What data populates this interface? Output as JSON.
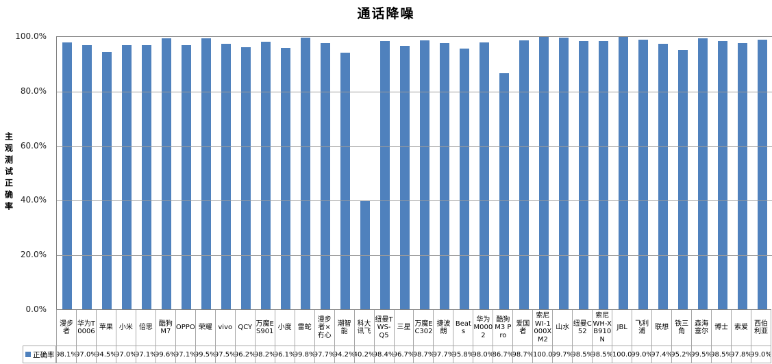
{
  "title": "通话降噪",
  "y_axis": {
    "label": "主观测试正确率",
    "ticks": [
      "100.0%",
      "80.0%",
      "60.0%",
      "40.0%",
      "20.0%",
      "0.0%"
    ]
  },
  "legend": {
    "label": "正确率"
  },
  "colors": {
    "bar": "#4f81bd",
    "grid": "#9b9b9b",
    "plot_border": "#808080",
    "table_border": "#a6a6a6"
  },
  "chart_data": {
    "type": "bar",
    "title": "通话降噪",
    "xlabel": "",
    "ylabel": "主观测试正确率",
    "ylim": [
      0,
      100
    ],
    "grid": true,
    "legend_position": "bottom-left",
    "series_name": "正确率",
    "categories": [
      "漫步者",
      "华为T0006",
      "苹果",
      "小米",
      "倍思",
      "酷狗M7",
      "OPPO",
      "荣耀",
      "vivo",
      "QCY",
      "万魔ES901",
      "小度",
      "雷蛇",
      "漫步者×冇心",
      "潮智能",
      "科大讯飞",
      "纽曼TWS-Q5",
      "三星",
      "万魔EC302",
      "捷波朗",
      "Beats",
      "华为M0002",
      "酷狗M3 Pro",
      "爱国者",
      "索尼WI-1000XM2",
      "山水",
      "纽曼C52",
      "索尼WH-XB910N",
      "JBL",
      "飞利浦",
      "联想",
      "铁三角",
      "森海塞尔",
      "博士",
      "索爱",
      "西伯利亚"
    ],
    "values": [
      98.1,
      97.0,
      94.5,
      97.0,
      97.1,
      99.6,
      97.1,
      99.5,
      97.5,
      96.2,
      98.2,
      96.1,
      99.8,
      97.7,
      94.2,
      40.2,
      98.4,
      96.7,
      98.7,
      97.7,
      95.8,
      98.0,
      86.7,
      98.7,
      100.0,
      99.7,
      98.5,
      98.5,
      100.0,
      99.0,
      97.4,
      95.2,
      99.5,
      98.5,
      97.8,
      99.0
    ],
    "display_values": [
      "98.1%",
      "97.0%",
      "94.5%",
      "97.0%",
      "97.1%",
      "99.6%",
      "97.1%",
      "99.5%",
      "97.5%",
      "96.2%",
      "98.2%",
      "96.1%",
      "99.8%",
      "97.7%",
      "94.2%",
      "40.2%",
      "98.4%",
      "96.7%",
      "98.7%",
      "97.7%",
      "95.8%",
      "98.0%",
      "86.7%",
      "98.7%",
      "100.0",
      "99.7%",
      "98.5%",
      "98.5%",
      "100.0",
      "99.0%",
      "97.4%",
      "95.2%",
      "99.5%",
      "98.5%",
      "97.8%",
      "99.0%"
    ]
  }
}
